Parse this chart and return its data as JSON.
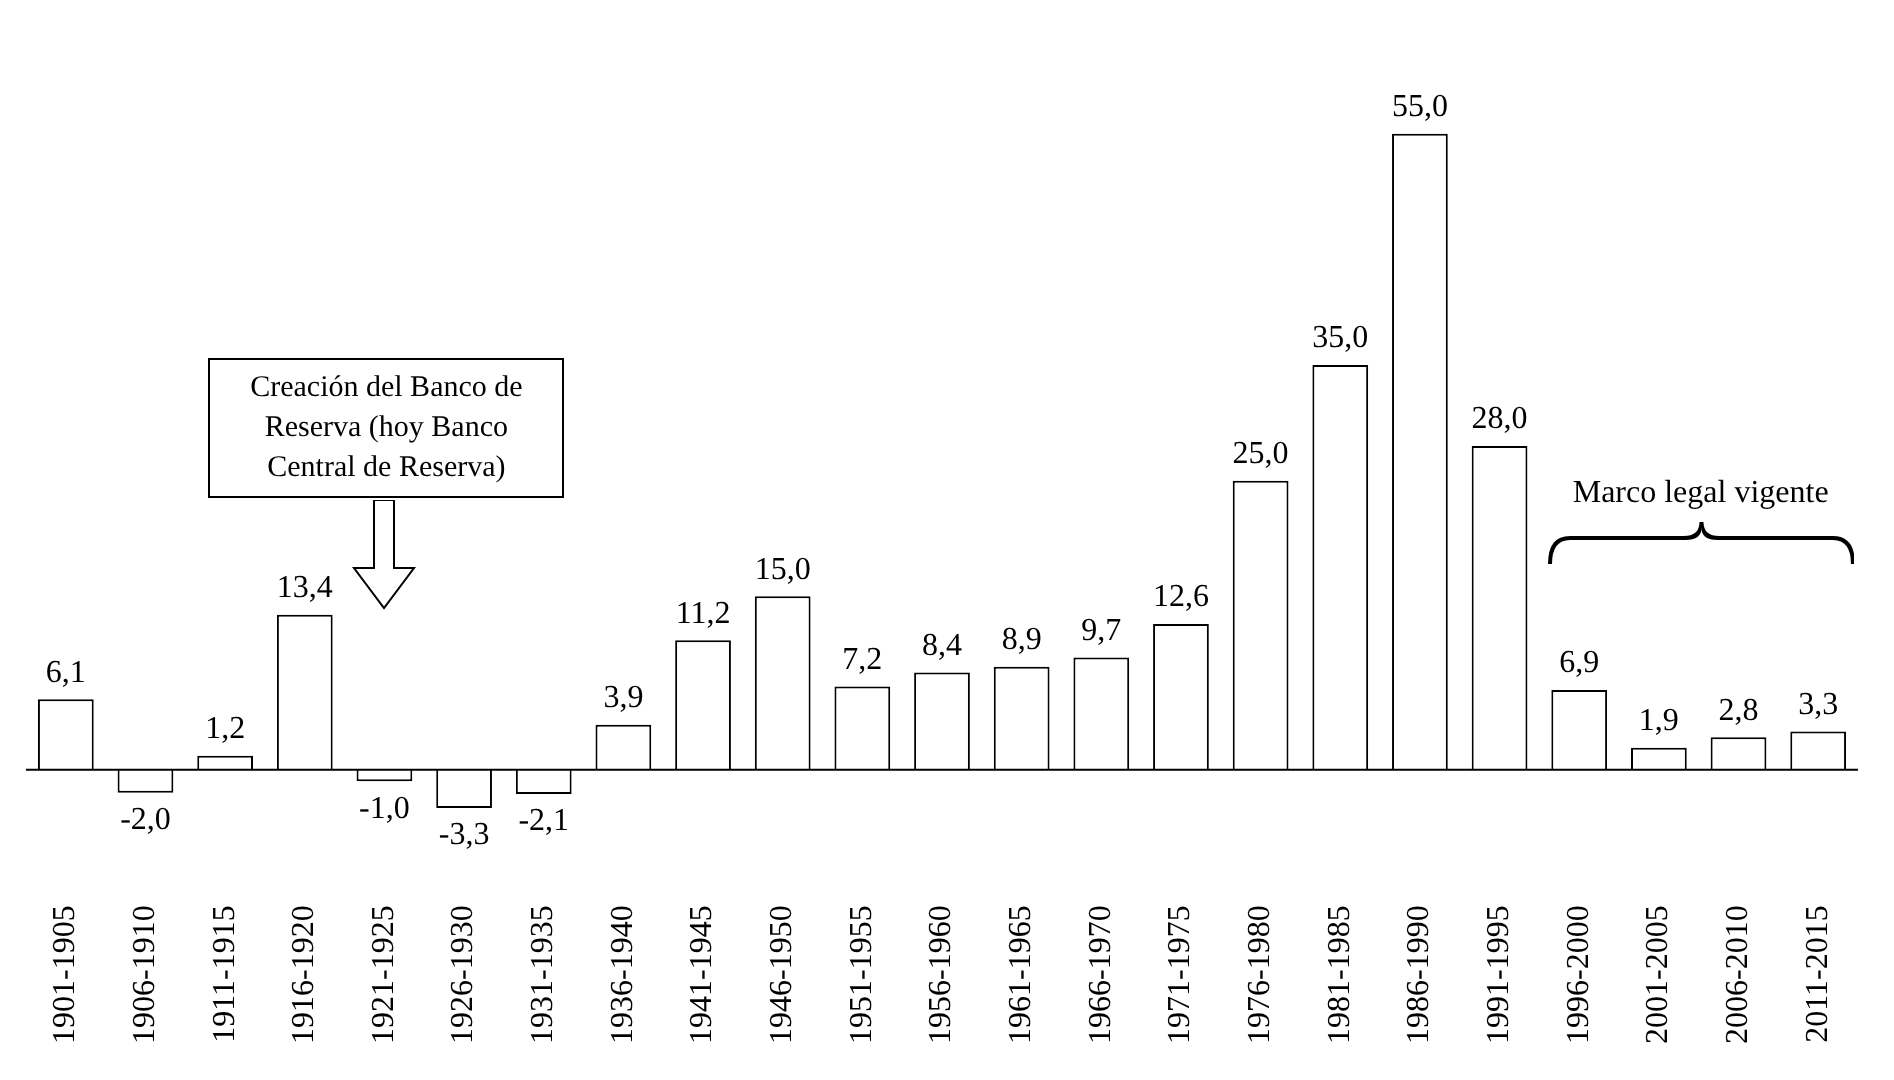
{
  "chart_data": {
    "type": "bar",
    "categories": [
      "1901-1905",
      "1906-1910",
      "1911-1915",
      "1916-1920",
      "1921-1925",
      "1926-1930",
      "1931-1935",
      "1936-1940",
      "1941-1945",
      "1946-1950",
      "1951-1955",
      "1956-1960",
      "1961-1965",
      "1966-1970",
      "1971-1975",
      "1976-1980",
      "1981-1985",
      "1986-1990",
      "1991-1995",
      "1996-2000",
      "2001-2005",
      "2006-2010",
      "2011-2015"
    ],
    "values": [
      6.1,
      -2.0,
      1.2,
      13.4,
      -1.0,
      -3.3,
      -2.1,
      3.9,
      11.2,
      15.0,
      7.2,
      8.4,
      8.9,
      9.7,
      12.6,
      25.0,
      35.0,
      55.0,
      28.0,
      6.9,
      1.9,
      2.8,
      3.3
    ],
    "value_labels": [
      "6,1",
      "-2,0",
      "1,2",
      "13,4",
      "-1,0",
      "-3,3",
      "-2,1",
      "3,9",
      "11,2",
      "15,0",
      "7,2",
      "8,4",
      "8,9",
      "9,7",
      "12,6",
      "25,0",
      "35,0",
      "55,0",
      "28,0",
      "6,9",
      "1,9",
      "2,8",
      "3,3"
    ],
    "color": "#ffffff",
    "annotations": [
      "Creación del Banco de Reserva (hoy Banco Central de Reserva)",
      "Marco legal vigente"
    ],
    "grid": false,
    "legend": false
  }
}
